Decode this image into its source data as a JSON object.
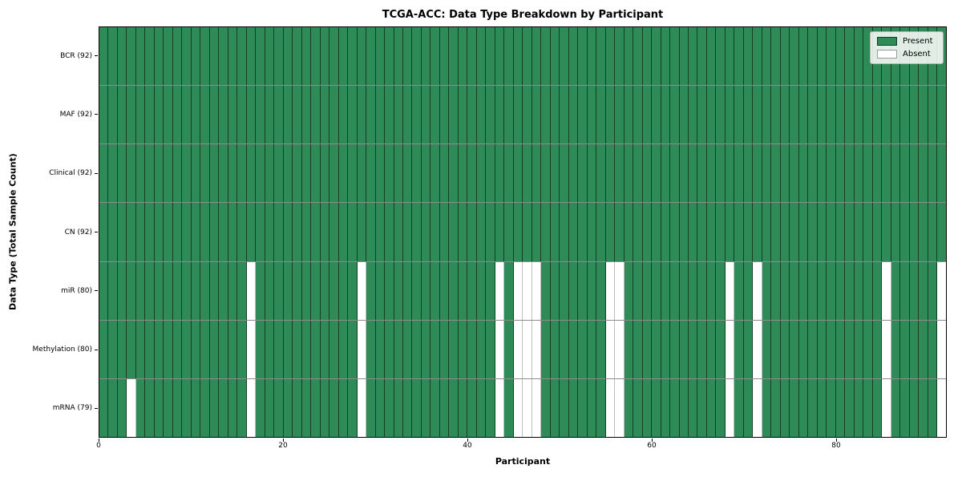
{
  "chart_data": {
    "type": "heatmap",
    "title": "TCGA-ACC: Data Type Breakdown by Participant",
    "xlabel": "Participant",
    "ylabel": "Data Type (Total Sample Count)",
    "x_ticks": [
      0,
      20,
      40,
      60,
      80
    ],
    "x_range": [
      0,
      92
    ],
    "n_participants": 92,
    "grid": "cell-borders",
    "legend_position": "upper-right",
    "colors": {
      "present": "#2e8b57",
      "absent": "#ffffff"
    },
    "legend": [
      {
        "label": "Present",
        "color": "#2e8b57"
      },
      {
        "label": "Absent",
        "color": "#ffffff"
      }
    ],
    "rows": [
      {
        "label": "BCR (92)",
        "present_count": 92,
        "absent_participants": []
      },
      {
        "label": "MAF (92)",
        "present_count": 92,
        "absent_participants": []
      },
      {
        "label": "Clinical (92)",
        "present_count": 92,
        "absent_participants": []
      },
      {
        "label": "CN (92)",
        "present_count": 92,
        "absent_participants": []
      },
      {
        "label": "miR (80)",
        "present_count": 80,
        "absent_participants": [
          16,
          28,
          43,
          45,
          46,
          47,
          55,
          56,
          68,
          71,
          85,
          91
        ]
      },
      {
        "label": "Methylation (80)",
        "present_count": 80,
        "absent_participants": [
          16,
          28,
          43,
          45,
          46,
          47,
          55,
          56,
          68,
          71,
          85,
          91
        ]
      },
      {
        "label": "mRNA (79)",
        "present_count": 79,
        "absent_participants": [
          3,
          16,
          28,
          43,
          45,
          46,
          47,
          55,
          56,
          68,
          71,
          85,
          91
        ]
      }
    ]
  }
}
